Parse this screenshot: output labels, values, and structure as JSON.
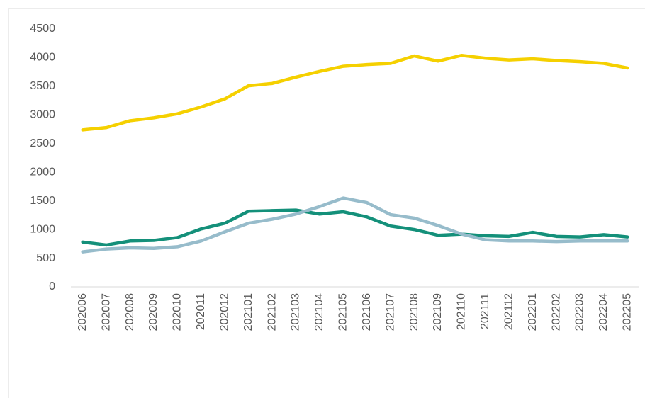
{
  "chart_data": {
    "type": "line",
    "categories": [
      "202006",
      "202007",
      "202008",
      "202009",
      "202010",
      "202011",
      "202012",
      "202101",
      "202102",
      "202103",
      "202104",
      "202105",
      "202106",
      "202107",
      "202108",
      "202109",
      "202110",
      "202111",
      "202112",
      "202201",
      "202202",
      "202203",
      "202204",
      "202205"
    ],
    "series": [
      {
        "color": "#f5d000",
        "values": [
          2740,
          2780,
          2900,
          2950,
          3020,
          3140,
          3280,
          3510,
          3550,
          3660,
          3760,
          3850,
          3880,
          3900,
          4030,
          3940,
          4040,
          3990,
          3960,
          3980,
          3950,
          3930,
          3900,
          3820
        ]
      },
      {
        "color": "#14907a",
        "values": [
          780,
          730,
          800,
          810,
          860,
          1010,
          1110,
          1320,
          1330,
          1340,
          1270,
          1310,
          1220,
          1060,
          1000,
          900,
          920,
          890,
          880,
          950,
          880,
          870,
          910,
          870
        ]
      },
      {
        "color": "#97bccb",
        "values": [
          610,
          660,
          680,
          670,
          700,
          800,
          960,
          1110,
          1180,
          1270,
          1400,
          1550,
          1470,
          1260,
          1200,
          1070,
          920,
          820,
          800,
          800,
          790,
          800,
          800,
          800
        ]
      }
    ],
    "ylim": [
      0,
      4500
    ],
    "yticks": [
      0,
      500,
      1000,
      1500,
      2000,
      2500,
      3000,
      3500,
      4000,
      4500
    ],
    "grid": false
  }
}
